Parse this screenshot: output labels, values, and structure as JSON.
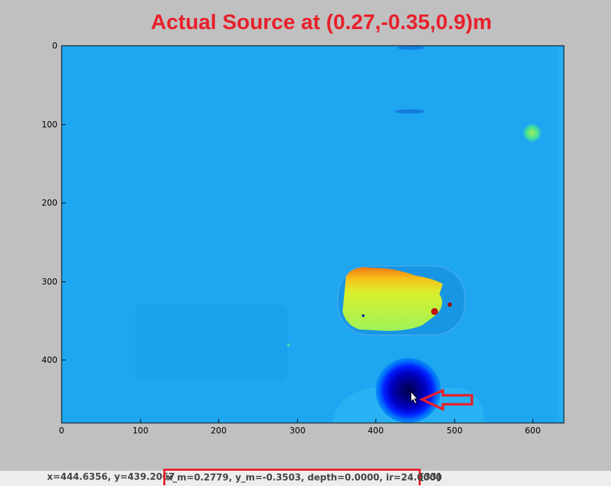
{
  "annotation": {
    "title": "Actual Source at (0.27,-0.35,0.9)m",
    "title_color": "#e8202a",
    "arrow_color": "#e8202a"
  },
  "plot": {
    "x_ticks": [
      "0",
      "100",
      "200",
      "300",
      "400",
      "500",
      "600"
    ],
    "y_ticks": [
      "0",
      "100",
      "200",
      "300",
      "400"
    ],
    "x_range": [
      0,
      640
    ],
    "y_range": [
      480,
      0
    ],
    "colormap": "jet",
    "background_color": "#1ea6f0"
  },
  "status": {
    "position": "x=444.6356, y=439.2067",
    "values": "x_m=0.2779, y_m=-0.3503, depth=0.0000, ir=24.0000",
    "extra": "[33]"
  }
}
